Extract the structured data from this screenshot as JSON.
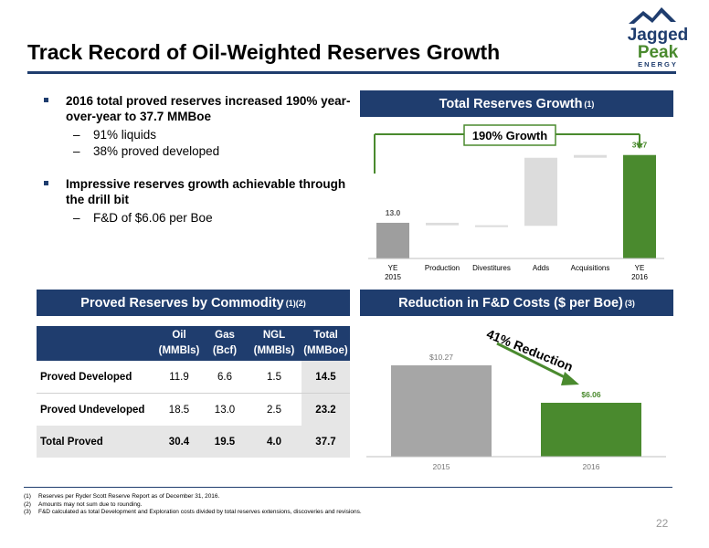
{
  "title": "Track Record of Oil-Weighted Reserves Growth",
  "logo": {
    "line1": "Jagged",
    "line2": "Peak",
    "line3": "ENERGY",
    "colors": {
      "navy": "#1f3d6e",
      "green": "#4a8a2e"
    }
  },
  "bullets": [
    {
      "text": "2016 total proved reserves increased 190% year-over-year to 37.7 MMBoe",
      "subs": [
        "91% liquids",
        "38% proved developed"
      ]
    },
    {
      "text": "Impressive reserves growth achievable through the drill bit",
      "subs": [
        "F&D of $6.06 per Boe"
      ]
    }
  ],
  "dash": "–",
  "reserves_panel": {
    "title": "Total Reserves Growth",
    "footnote_ref": "(1)",
    "growth_label": "190% Growth"
  },
  "commodity_panel": {
    "title": "Proved Reserves by Commodity",
    "footnote_ref": "(1)(2)",
    "columns": [
      {
        "line1": "Oil",
        "line2": "(MMBls)"
      },
      {
        "line1": "Gas",
        "line2": "(Bcf)"
      },
      {
        "line1": "NGL",
        "line2": "(MMBls)"
      },
      {
        "line1": "Total",
        "line2": "(MMBoe)"
      }
    ],
    "rows": [
      {
        "label": "Proved Developed",
        "values": [
          "11.9",
          "6.6",
          "1.5",
          "14.5"
        ]
      },
      {
        "label": "Proved Undeveloped",
        "values": [
          "18.5",
          "13.0",
          "2.5",
          "23.2"
        ]
      },
      {
        "label": "Total Proved",
        "values": [
          "30.4",
          "19.5",
          "4.0",
          "37.7"
        ]
      }
    ]
  },
  "fd_panel": {
    "title": "Reduction in F&D Costs ($ per Boe)",
    "footnote_ref": "(3)",
    "reduction_label": "41% Reduction"
  },
  "chart_data": [
    {
      "type": "bar",
      "subtype": "waterfall",
      "categories": [
        "YE\n2015",
        "Production",
        "Divestitures",
        "Adds",
        "Acquisitions",
        "YE\n2016"
      ],
      "steps": [
        {
          "category": "YE 2015",
          "kind": "total",
          "value": 13.0,
          "label": "13.0"
        },
        {
          "category": "Production",
          "kind": "change",
          "value": -0.9,
          "label": ""
        },
        {
          "category": "Divestitures",
          "kind": "change",
          "value": -0.2,
          "label": ""
        },
        {
          "category": "Adds",
          "kind": "change",
          "value": 24.8,
          "label": ""
        },
        {
          "category": "Acquisitions",
          "kind": "change",
          "value": 1.0,
          "label": ""
        },
        {
          "category": "YE 2016",
          "kind": "total",
          "value": 37.7,
          "label": "37.7"
        }
      ],
      "ylim": [
        0,
        42
      ],
      "colors": {
        "start": "#9e9e9e",
        "change": "#dcdcdc",
        "end": "#4a8a2e"
      },
      "grid": false
    },
    {
      "type": "bar",
      "categories": [
        "2015",
        "2016"
      ],
      "values": [
        10.27,
        6.06
      ],
      "labels": [
        "$10.27",
        "$6.06"
      ],
      "colors": [
        "#a6a6a6",
        "#4a8a2e"
      ],
      "ylim": [
        0,
        12
      ],
      "grid": false
    }
  ],
  "footnotes": [
    {
      "num": "(1)",
      "text": "Reserves per Ryder Scott Reserve Report as of December 31, 2016."
    },
    {
      "num": "(2)",
      "text": "Amounts may not sum due to rounding."
    },
    {
      "num": "(3)",
      "text": "F&D calculated as total Development and Exploration costs divided by total reserves extensions, discoveries and revisions."
    }
  ],
  "page_number": "22"
}
